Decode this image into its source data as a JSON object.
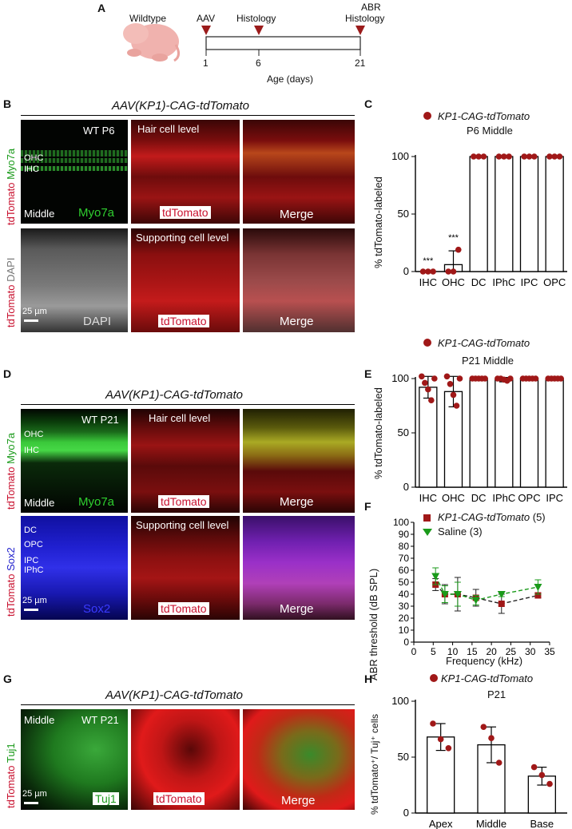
{
  "panels": {
    "A": {
      "letter": "A",
      "wildtype": "Wildtype",
      "aav": "AAV",
      "histology": "Histology",
      "abr": "ABR",
      "histology2": "Histology",
      "ticks": [
        "1",
        "6",
        "21"
      ],
      "xlabel": "Age (days)"
    },
    "B": {
      "letter": "B",
      "title": "AAV(KP1)-CAG-tdTomato",
      "top_left": {
        "wt": "WT P6",
        "ohc": "OHC",
        "ihc": "IHC",
        "region": "Middle",
        "stain": "Myo7a"
      },
      "top_mid": {
        "level": "Hair cell level",
        "stain": "tdTomato"
      },
      "top_right": {
        "stain": "Merge"
      },
      "bot_left": {
        "scale": "25 µm",
        "stain": "DAPI"
      },
      "bot_mid": {
        "level": "Supporting cell level",
        "stain": "tdTomato"
      },
      "bot_right": {
        "stain": "Merge"
      },
      "side_top": [
        "tdTomato",
        " Myo7a"
      ],
      "side_bot": [
        "tdTomato",
        " DAPI"
      ]
    },
    "C": {
      "letter": "C",
      "legend": "KP1-CAG-tdTomato",
      "subtitle": "P6 Middle",
      "ylabel": "% tdTomato-labeled",
      "stars": [
        "***",
        "***"
      ]
    },
    "D": {
      "letter": "D",
      "title": "AAV(KP1)-CAG-tdTomato",
      "top_left": {
        "wt": "WT P21",
        "ohc": "OHC",
        "ihc": "IHC",
        "region": "Middle",
        "stain": "Myo7a"
      },
      "top_mid": {
        "level": "Hair cell level",
        "stain": "tdTomato"
      },
      "top_right": {
        "stain": "Merge"
      },
      "bot_left": {
        "dc": "DC",
        "opc": "OPC",
        "ipc": "IPC",
        "iphc": "IPhC",
        "scale": "25 µm",
        "stain": "Sox2"
      },
      "bot_mid": {
        "level": "Supporting cell level",
        "stain": "tdTomato"
      },
      "bot_right": {
        "stain": "Merge"
      },
      "side_top": [
        "tdTomato",
        " Myo7a"
      ],
      "side_bot": [
        "tdTomato",
        " Sox2"
      ]
    },
    "E": {
      "letter": "E",
      "legend": "KP1-CAG-tdTomato",
      "subtitle": "P21 Middle",
      "ylabel": "% tdTomato-labeled"
    },
    "F": {
      "letter": "F",
      "legend1": "KP1-CAG-tdTomato",
      "legend1n": " (5)",
      "legend2": "Saline (3)",
      "ylabel": "ABR threshold (dB SPL)",
      "xlabel": "Frequency (kHz)"
    },
    "G": {
      "letter": "G",
      "title": "AAV(KP1)-CAG-tdTomato",
      "left": {
        "region": "Middle",
        "wt": "WT P21",
        "scale": "25 µm",
        "stain": "Tuj1"
      },
      "mid": {
        "stain": "tdTomato"
      },
      "right": {
        "stain": "Merge"
      },
      "side": [
        "tdTomato",
        " Tuj1"
      ]
    },
    "H": {
      "letter": "H",
      "legend": "KP1-CAG-tdTomato",
      "subtitle": "P21",
      "ylabel": "% tdTomato⁺/ Tuj⁺ cells"
    }
  },
  "colors": {
    "red": "#a01818",
    "green": "#1a9a1a",
    "dashed_black": "#222"
  },
  "chart_data": [
    {
      "id": "C",
      "type": "bar",
      "categories": [
        "IHC",
        "OHC",
        "DC",
        "IPhC",
        "IPC",
        "OPC"
      ],
      "values": [
        0,
        6,
        100,
        100,
        100,
        100
      ],
      "errors": [
        0,
        12,
        0,
        0,
        0,
        0
      ],
      "points": [
        [
          0,
          0,
          0
        ],
        [
          0,
          0,
          19
        ],
        [
          100,
          100,
          100
        ],
        [
          100,
          100,
          100
        ],
        [
          100,
          100,
          100
        ],
        [
          100,
          100,
          100
        ]
      ],
      "ylim": [
        0,
        100
      ],
      "yticks": [
        0,
        50,
        100
      ]
    },
    {
      "id": "E",
      "type": "bar",
      "categories": [
        "IHC",
        "OHC",
        "DC",
        "IPhC",
        "OPC",
        "IPC"
      ],
      "values": [
        92,
        88,
        100,
        99,
        100,
        100
      ],
      "errors": [
        10,
        14,
        0,
        2,
        0,
        0
      ],
      "points": [
        [
          102,
          96,
          90,
          80,
          100
        ],
        [
          102,
          95,
          85,
          75,
          100
        ],
        [
          100,
          100,
          100,
          100,
          100
        ],
        [
          100,
          100,
          99,
          98,
          100
        ],
        [
          100,
          100,
          100,
          100,
          100
        ],
        [
          100,
          100,
          100,
          100,
          100
        ]
      ],
      "ylim": [
        0,
        100
      ],
      "yticks": [
        0,
        50,
        100
      ]
    },
    {
      "id": "F",
      "type": "line",
      "series": [
        {
          "name": "KP1-CAG-tdTomato (5)",
          "x": [
            5.6,
            8,
            11.3,
            16,
            22.6,
            32
          ],
          "y": [
            48,
            40,
            40,
            37,
            32,
            39
          ],
          "err": [
            5,
            8,
            14,
            7,
            8,
            2
          ]
        },
        {
          "name": "Saline (3)",
          "x": [
            5.6,
            8,
            11.3,
            16,
            22.6,
            32
          ],
          "y": [
            55,
            40,
            40,
            35,
            40,
            46
          ],
          "err": [
            7,
            7,
            10,
            4,
            2,
            6
          ]
        }
      ],
      "xlim": [
        0,
        35
      ],
      "xticks": [
        0,
        5,
        10,
        15,
        20,
        25,
        30,
        35
      ],
      "ylim": [
        0,
        100
      ],
      "yticks": [
        0,
        10,
        20,
        30,
        40,
        50,
        60,
        70,
        80,
        90,
        100
      ]
    },
    {
      "id": "H",
      "type": "bar",
      "categories": [
        "Apex",
        "Middle",
        "Base"
      ],
      "values": [
        68,
        61,
        33
      ],
      "errors": [
        12,
        16,
        8
      ],
      "points": [
        [
          80,
          66,
          58
        ],
        [
          77,
          67,
          45
        ],
        [
          41,
          34,
          26
        ]
      ],
      "ylim": [
        0,
        100
      ],
      "yticks": [
        0,
        50,
        100
      ]
    }
  ]
}
